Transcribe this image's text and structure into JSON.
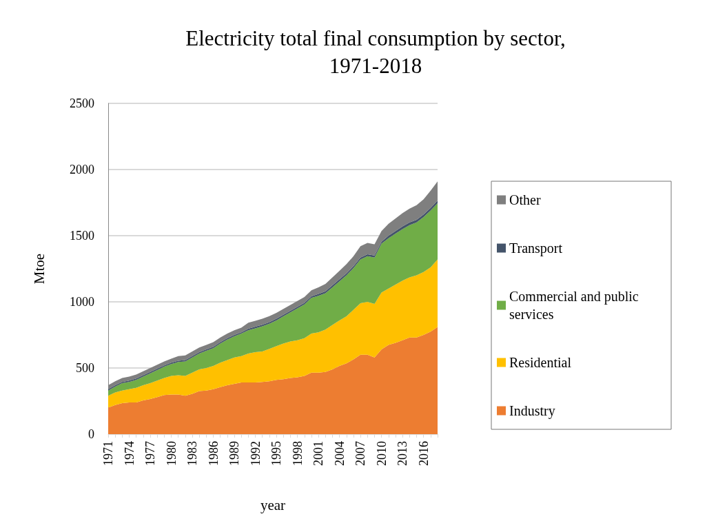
{
  "chart_data": {
    "type": "area",
    "title": "Electricity total final consumption by sector,\n1971-2018",
    "xlabel": "year",
    "ylabel": "Mtoe",
    "categories": [
      "1971",
      null,
      null,
      "1974",
      null,
      null,
      "1977",
      null,
      null,
      "1980",
      null,
      null,
      "1983",
      null,
      null,
      "1986",
      null,
      null,
      "1989",
      null,
      null,
      "1992",
      null,
      null,
      "1995",
      null,
      null,
      "1998",
      null,
      null,
      "2001",
      null,
      null,
      "2004",
      null,
      null,
      "2007",
      null,
      null,
      "2010",
      null,
      null,
      "2013",
      null,
      null,
      "2016",
      null,
      null
    ],
    "series": [
      {
        "name": "Industry",
        "color": "#ed7d31",
        "values": [
          200,
          220,
          235,
          240,
          240,
          255,
          265,
          280,
          295,
          300,
          300,
          290,
          305,
          325,
          330,
          340,
          355,
          370,
          380,
          390,
          390,
          390,
          395,
          400,
          410,
          415,
          425,
          430,
          440,
          465,
          465,
          470,
          490,
          515,
          535,
          565,
          600,
          600,
          580,
          640,
          675,
          690,
          710,
          730,
          730,
          750,
          775,
          810
        ]
      },
      {
        "name": "Residential",
        "color": "#ffc000",
        "values": [
          90,
          95,
          95,
          100,
          110,
          115,
          120,
          125,
          130,
          140,
          145,
          150,
          160,
          165,
          170,
          175,
          185,
          190,
          200,
          200,
          220,
          230,
          230,
          245,
          255,
          270,
          275,
          280,
          285,
          295,
          305,
          320,
          335,
          345,
          355,
          375,
          390,
          400,
          405,
          430,
          425,
          440,
          450,
          455,
          470,
          475,
          485,
          510
        ]
      },
      {
        "name": "Commercial and public services",
        "color": "#70ad47",
        "values": [
          40,
          45,
          55,
          55,
          60,
          65,
          75,
          80,
          85,
          90,
          100,
          110,
          115,
          120,
          130,
          135,
          145,
          155,
          160,
          170,
          175,
          180,
          190,
          190,
          195,
          205,
          220,
          240,
          255,
          270,
          275,
          275,
          285,
          295,
          310,
          315,
          330,
          345,
          350,
          370,
          380,
          385,
          390,
          395,
          400,
          415,
          430,
          425
        ]
      },
      {
        "name": "Transport",
        "color": "#44546a",
        "values": [
          10,
          10,
          10,
          10,
          10,
          10,
          10,
          10,
          10,
          10,
          10,
          10,
          10,
          10,
          10,
          10,
          10,
          10,
          10,
          10,
          12,
          12,
          12,
          12,
          12,
          12,
          12,
          12,
          12,
          12,
          15,
          15,
          15,
          15,
          15,
          15,
          15,
          15,
          15,
          15,
          20,
          20,
          20,
          20,
          20,
          20,
          20,
          20
        ]
      },
      {
        "name": "Other",
        "color": "#7f7f7f",
        "values": [
          30,
          30,
          30,
          30,
          30,
          30,
          30,
          30,
          30,
          30,
          35,
          35,
          35,
          35,
          35,
          35,
          35,
          35,
          35,
          35,
          45,
          45,
          45,
          45,
          45,
          45,
          45,
          45,
          45,
          45,
          50,
          55,
          60,
          65,
          70,
          75,
          85,
          85,
          85,
          80,
          90,
          95,
          100,
          105,
          110,
          115,
          130,
          145
        ]
      }
    ],
    "stacked": true,
    "ylim": [
      0,
      2500
    ],
    "yticks": [
      0,
      500,
      1000,
      1500,
      2000,
      2500
    ],
    "grid": "y",
    "legend": "right"
  }
}
